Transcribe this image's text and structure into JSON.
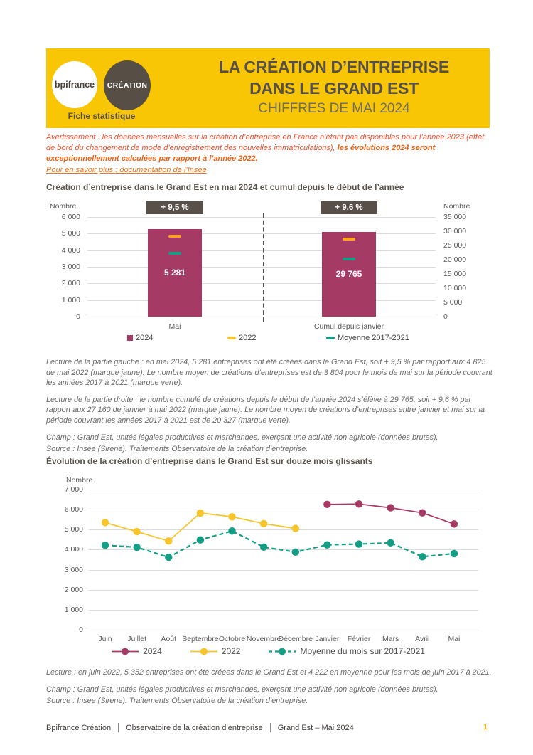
{
  "header": {
    "logo_primary": "bpifrance",
    "logo_secondary": "CRÉATION",
    "logo_caption": "Fiche statistique",
    "title_line1": "LA CRÉATION D’ENTREPRISE",
    "title_line2": "DANS LE GRAND EST",
    "subtitle": "CHIFFRES DE MAI 2024",
    "background_color": "#F9C606",
    "brand_brown": "#574E45"
  },
  "notice": {
    "warning_regular": "Avertissement : les données mensuelles sur la création d’entreprise en France n’étant pas disponibles pour l’année 2023 (effet de bord du changement de mode d’enregistrement des nouvelles immatriculations), ",
    "warning_bold": "les évolutions 2024 seront exceptionnellement calculées par rapport à l’année 2022.",
    "link_text": "Pour en savoir plus : documentation de l’Insee"
  },
  "chart_data": [
    {
      "type": "bar",
      "title": "Création d’entreprise dans le Grand Est en mai 2024 et cumul depuis le début de l’année",
      "categories": [
        "Mai",
        "Cumul depuis janvier"
      ],
      "axis_max": [
        6000,
        35000
      ],
      "badges": [
        "+ 9,5 %",
        "+ 9,6 %"
      ],
      "bar_value_labels": [
        "5 281",
        "29 765"
      ],
      "series": [
        {
          "name": "2024",
          "style": "bar",
          "color": "#A53A65",
          "values": [
            5281,
            29765
          ]
        },
        {
          "name": "2022",
          "style": "tick",
          "color": "#FFA21F",
          "values": [
            4825,
            27160
          ]
        },
        {
          "name": "Moyenne 2017-2021",
          "style": "tick",
          "color": "#149E85",
          "values": [
            3804,
            20327
          ]
        }
      ],
      "left_axis": {
        "label": "Nombre",
        "max": 6000,
        "ticks": [
          "6 000",
          "5 000",
          "4 000",
          "3 000",
          "2 000",
          "1 000",
          "0"
        ]
      },
      "right_axis": {
        "label": "Nombre",
        "max": 35000,
        "ticks": [
          "35 000",
          "30 000",
          "25 000",
          "20 000",
          "15 000",
          "10 000",
          "5 000",
          "0"
        ]
      },
      "legend": [
        {
          "label": "2024",
          "color": "#A53A65",
          "swatch": "square"
        },
        {
          "label": "2022",
          "color": "#F7C52B",
          "swatch": "dash"
        },
        {
          "label": "Moyenne 2017-2021",
          "color": "#149E85",
          "swatch": "dash"
        }
      ],
      "grid": true
    },
    {
      "type": "line",
      "title": "Évolution de la création d’entreprise dans le Grand Est sur douze mois glissants",
      "ylabel": "Nombre",
      "ylim": [
        0,
        7000
      ],
      "yticks": [
        "7 000",
        "6 000",
        "5 000",
        "4 000",
        "3 000",
        "2 000",
        "1 000",
        "0"
      ],
      "categories": [
        "Juin",
        "Juillet",
        "Août",
        "Septembre",
        "Octobre",
        "Novembre",
        "Décembre",
        "Janvier",
        "Février",
        "Mars",
        "Avril",
        "Mai"
      ],
      "series": [
        {
          "name": "2022",
          "color": "#F7C52B",
          "dashed": false,
          "start_index": 0,
          "values": [
            5352,
            4900,
            4430,
            5830,
            5640,
            5300,
            5060
          ]
        },
        {
          "name": "Moyenne du mois sur 2017-2021",
          "color": "#149E85",
          "dashed": true,
          "start_index": 0,
          "values": [
            4222,
            4120,
            3620,
            4490,
            4930,
            4130,
            3880,
            4240,
            4280,
            4340,
            3650,
            3804
          ]
        },
        {
          "name": "2024",
          "color": "#A53A65",
          "dashed": false,
          "start_index": 7,
          "values": [
            6260,
            6280,
            6090,
            5840,
            5281
          ]
        }
      ],
      "legend_order": [
        "2024",
        "2022",
        "Moyenne du mois sur 2017-2021"
      ],
      "grid": true,
      "legend_position": "bottom"
    }
  ],
  "chart1_notes": {
    "lecture_left": "Lecture de la partie gauche : en mai 2024, 5 281 entreprises ont été créées dans le Grand Est, soit + 9,5 % par rapport aux 4 825 de mai 2022 (marque jaune). Le nombre moyen de créations d’entreprises est de 3 804 pour le mois de mai sur la période couvrant les années 2017 à 2021 (marque verte).",
    "lecture_right": "Lecture de la partie droite : le nombre cumulé de créations depuis le début de l’année 2024 s’élève à 29 765, soit + 9,6 % par rapport aux 27 160 de janvier à mai 2022 (marque jaune). Le nombre moyen de créations d’entreprises entre janvier et mai sur la période couvrant les années 2017 à 2021 est de 20 327 (marque verte).",
    "champ": "Champ : Grand Est, unités légales productives et marchandes, exerçant une activité non agricole (données brutes).",
    "source": "Source : Insee (Sirene). Traitements Observatoire de la création d’entreprise."
  },
  "chart2_notes": {
    "lecture": "Lecture : en juin 2022, 5 352 entreprises ont été créées dans le Grand Est et 4 222 en moyenne pour les mois de juin 2017 à 2021.",
    "champ": "Champ : Grand Est, unités légales productives et marchandes, exerçant une activité non agricole (données brutes).",
    "source": "Source : Insee (Sirene). Traitements Observatoire de la création d’entreprise."
  },
  "footer": {
    "items": [
      "Bpifrance Création",
      "Observatoire de la création d’entreprise",
      "Grand Est – Mai 2024"
    ],
    "page_number": "1",
    "page_number_color": "#F5B50A"
  }
}
